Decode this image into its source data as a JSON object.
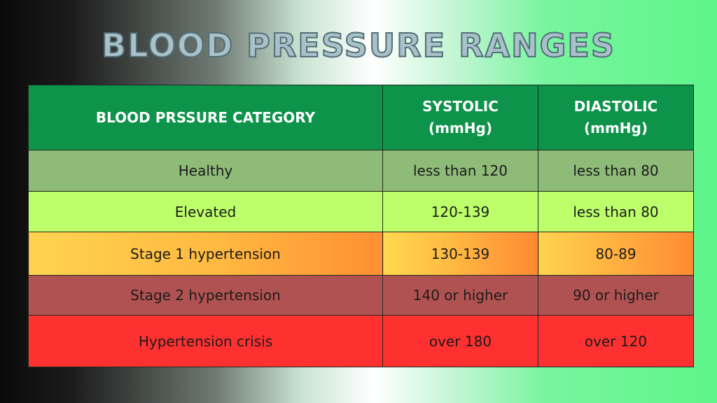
{
  "title": "BLOOD PRESSURE RANGES",
  "table": {
    "headers": {
      "category": "BLOOD PRSSURE CATEGORY",
      "systolic_line1": "SYSTOLIC",
      "systolic_line2": "(mmHg)",
      "diastolic_line1": "DIASTOLIC",
      "diastolic_line2": "(mmHg)"
    },
    "rows": [
      {
        "category": "Healthy",
        "systolic": "less than 120",
        "diastolic": "less than 80"
      },
      {
        "category": "Elevated",
        "systolic": "120-139",
        "diastolic": "less than 80"
      },
      {
        "category": "Stage 1 hypertension",
        "systolic": "130-139",
        "diastolic": "80-89"
      },
      {
        "category": "Stage 2 hypertension",
        "systolic": "140 or higher",
        "diastolic": "90 or higher"
      },
      {
        "category": "Hypertension crisis",
        "systolic": "over 180",
        "diastolic": "over 120"
      }
    ]
  },
  "colors": {
    "header_bg": "#0e934b",
    "healthy": "#8fbb78",
    "elevated": "#bcff6a",
    "stage1": "#ffb840",
    "stage2": "#b15252",
    "crisis": "#ff3030"
  }
}
